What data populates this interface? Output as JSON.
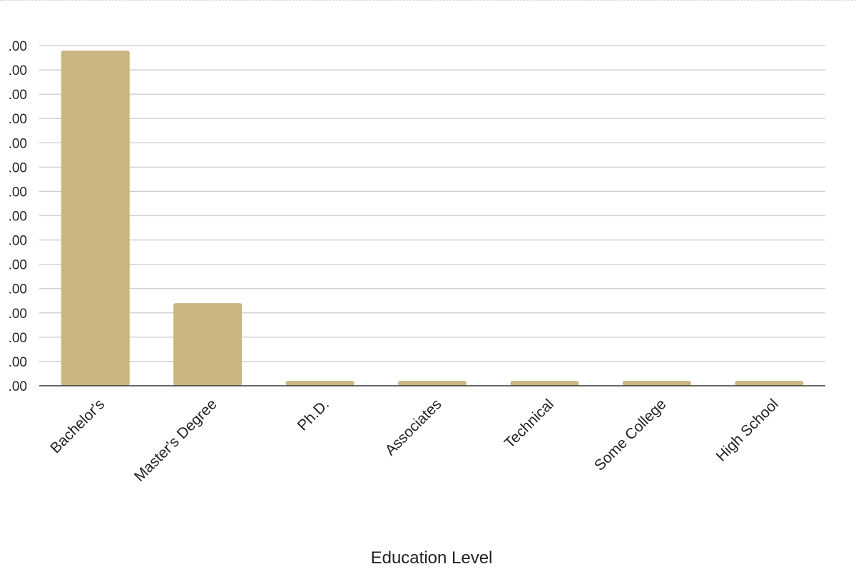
{
  "chart_data": {
    "type": "bar",
    "title": "",
    "xlabel": "Education Level",
    "ylabel": "",
    "categories": [
      "Bachelor's",
      "Master's Degree",
      "Ph.D.",
      "Associates",
      "Technical",
      "Some College",
      "High School"
    ],
    "values": [
      13.8,
      3.4,
      0.2,
      0.2,
      0.2,
      0.2,
      0.2
    ],
    "ylim": [
      0,
      14
    ],
    "yticks": [
      ".00",
      ".00",
      ".00",
      ".00",
      ".00",
      ".00",
      ".00",
      ".00",
      ".00",
      ".00",
      ".00",
      ".00",
      ".00",
      ".00",
      ".00"
    ],
    "grid": true,
    "legend": "none",
    "bar_color": "#c9b680"
  }
}
